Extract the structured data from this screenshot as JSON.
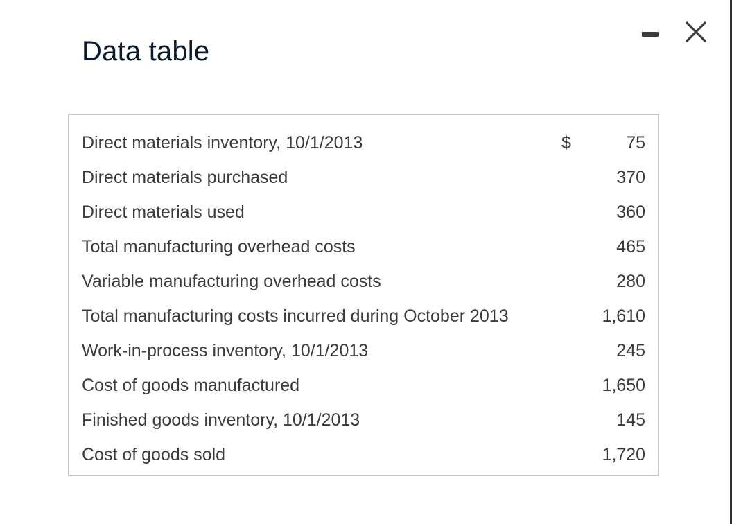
{
  "dialog": {
    "title": "Data table"
  },
  "window_controls": {
    "minimize_icon": "minimize-icon",
    "close_icon": "close-icon"
  },
  "table": {
    "currency_symbol": "$",
    "rows": [
      {
        "label": "Direct materials inventory, 10/1/2013",
        "value": "75"
      },
      {
        "label": "Direct materials purchased",
        "value": "370"
      },
      {
        "label": "Direct materials used",
        "value": "360"
      },
      {
        "label": "Total manufacturing overhead costs",
        "value": "465"
      },
      {
        "label": "Variable manufacturing overhead costs",
        "value": "280"
      },
      {
        "label": "Total manufacturing costs incurred during October 2013",
        "value": "1,610"
      },
      {
        "label": "Work-in-process inventory, 10/1/2013",
        "value": "245"
      },
      {
        "label": "Cost of goods manufactured",
        "value": "1,650"
      },
      {
        "label": "Finished goods inventory, 10/1/2013",
        "value": "145"
      },
      {
        "label": "Cost of goods sold",
        "value": "1,720"
      }
    ]
  }
}
